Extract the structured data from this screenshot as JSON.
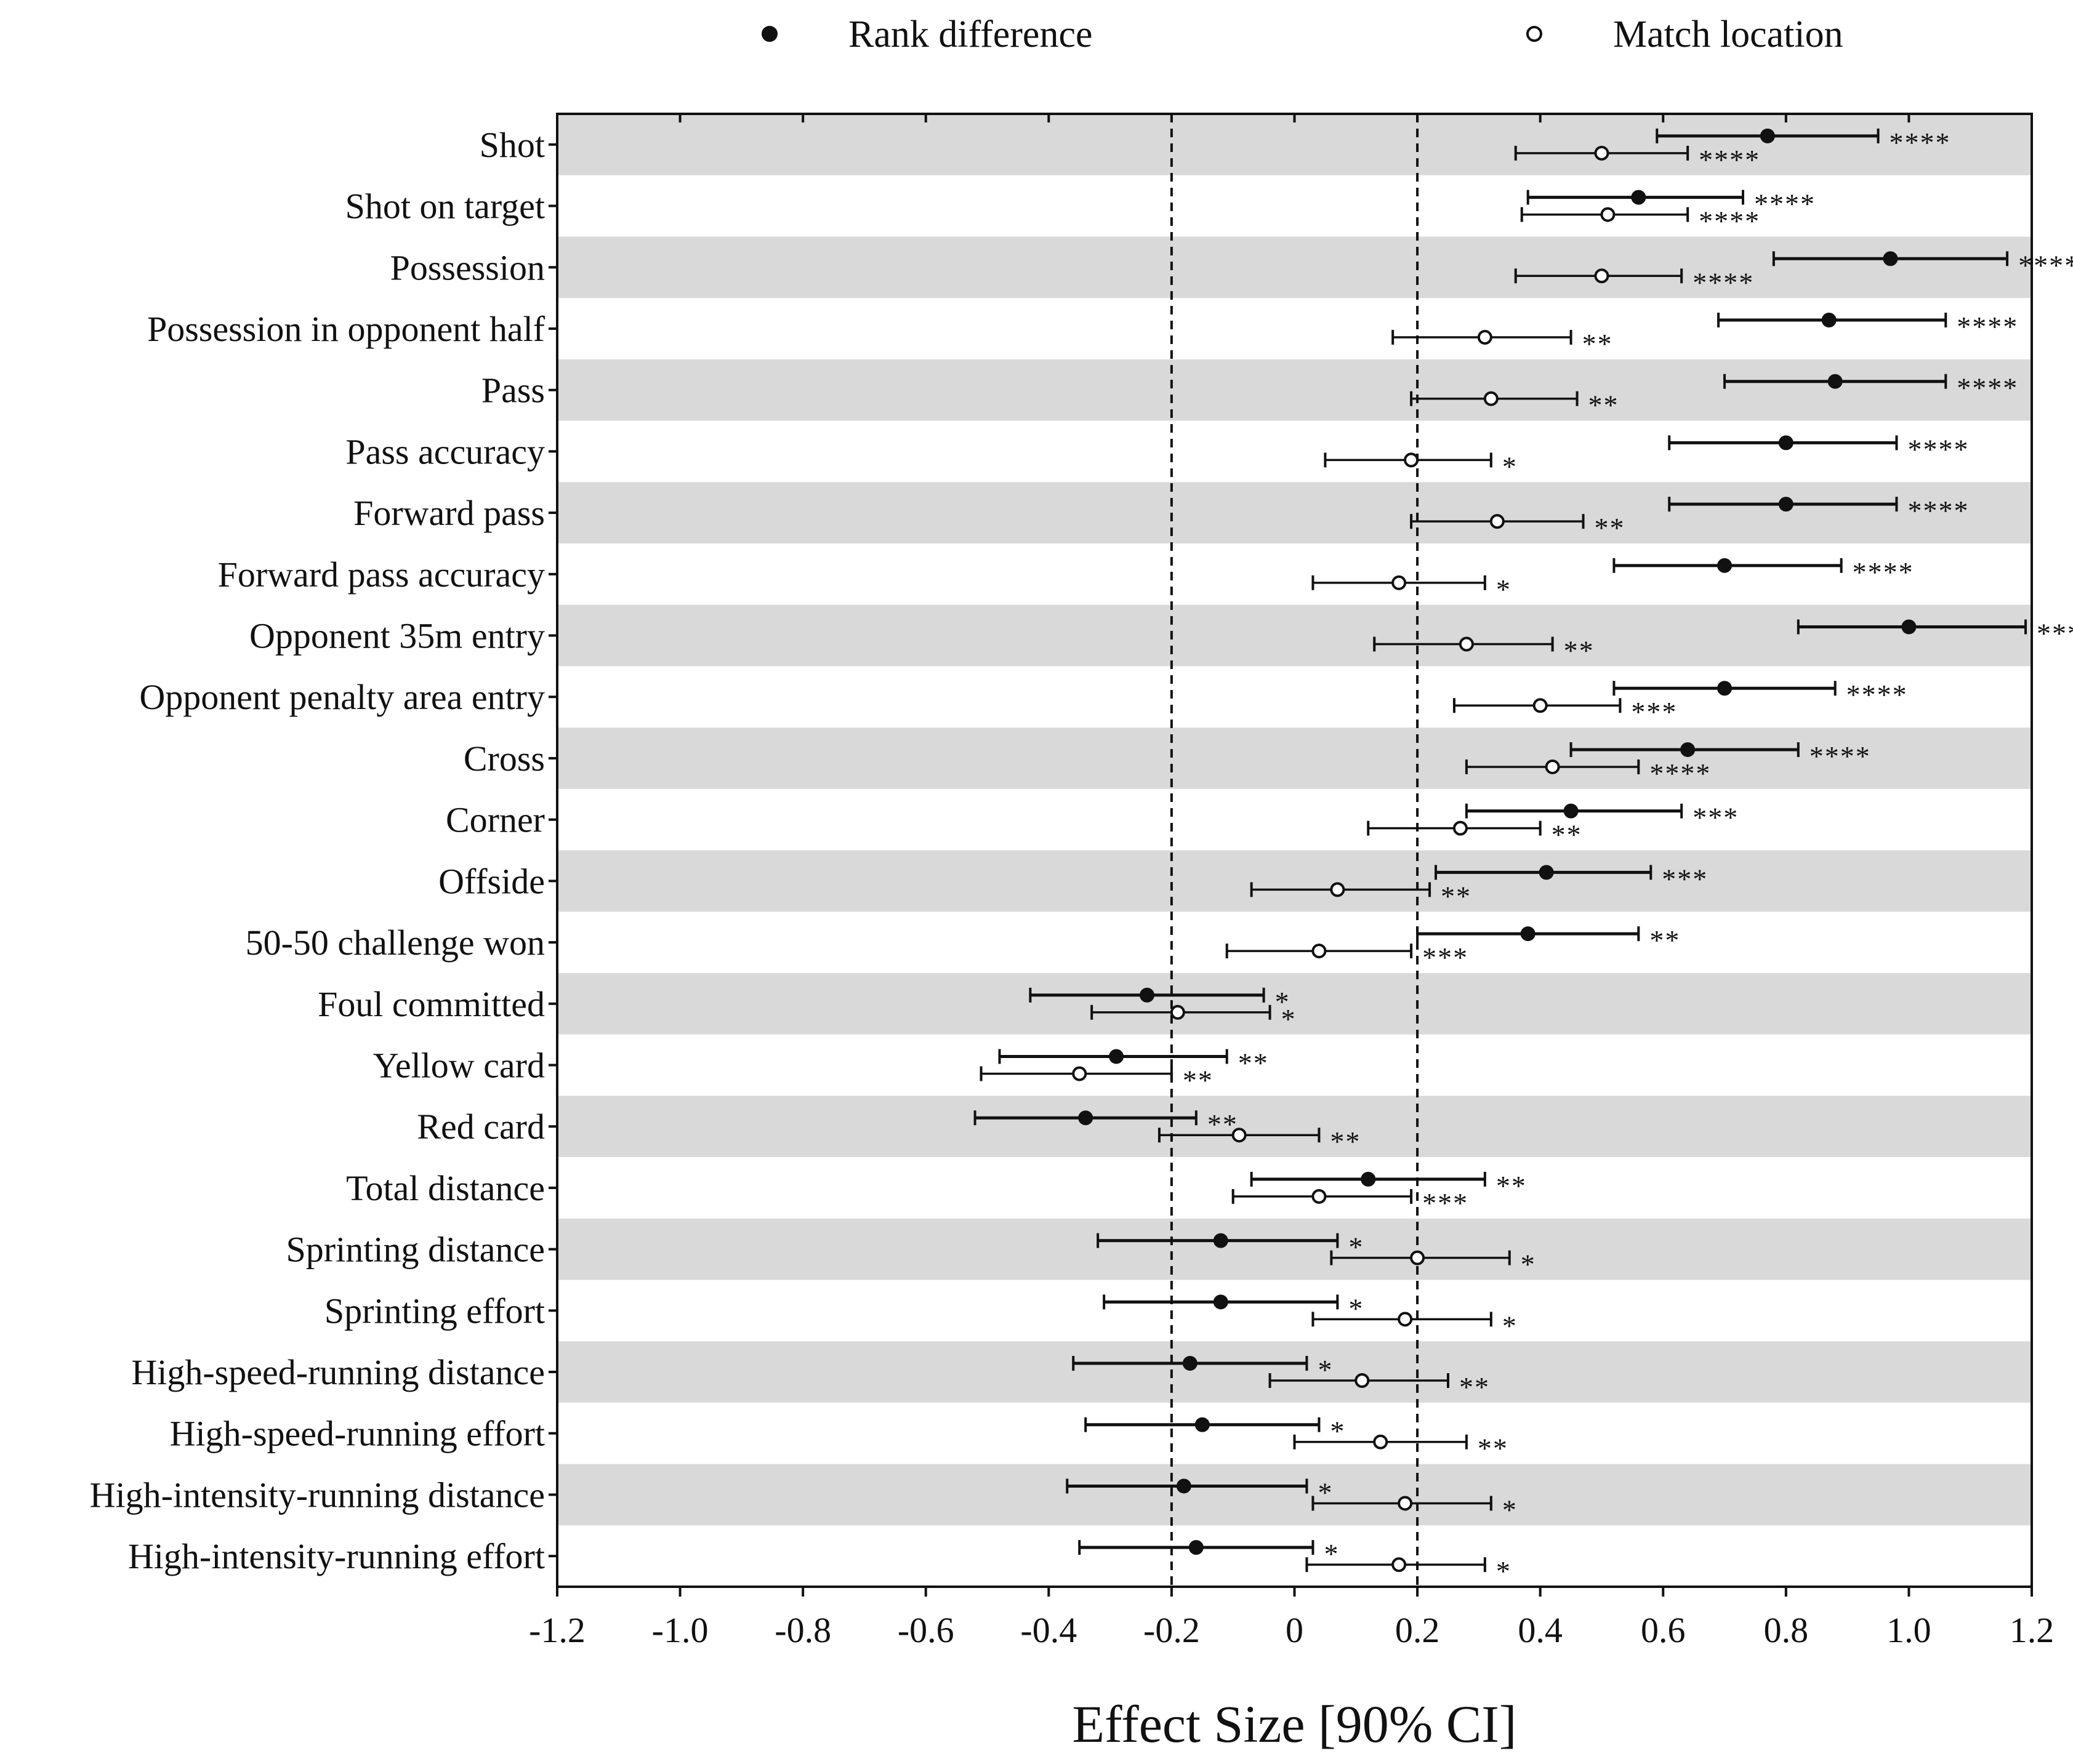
{
  "chart_data": {
    "type": "forest",
    "xlabel": "Effect Size [90% CI]",
    "xlim": [
      -1.2,
      1.2
    ],
    "xticks": [
      "-1.2",
      "-1.0",
      "-0.8",
      "-0.6",
      "-0.4",
      "-0.2",
      "0",
      "0.2",
      "0.4",
      "0.6",
      "0.8",
      "1.0",
      "1.2"
    ],
    "reference_lines": [
      -0.2,
      0.2
    ],
    "legend": {
      "position": "top",
      "entries": [
        {
          "label": "Rank difference",
          "marker": "filled"
        },
        {
          "label": "Match location",
          "marker": "open"
        }
      ]
    },
    "categories": [
      "Shot",
      "Shot on target",
      "Possession",
      "Possession in opponent half",
      "Pass",
      "Pass accuracy",
      "Forward pass",
      "Forward pass accuracy",
      "Opponent 35m entry",
      "Opponent penalty area entry",
      "Cross",
      "Corner",
      "Offside",
      "50-50 challenge won",
      "Foul committed",
      "Yellow card",
      "Red card",
      "Total distance",
      "Sprinting distance",
      "Sprinting effort",
      "High-speed-running distance",
      "High-speed-running effort",
      "High-intensity-running distance",
      "High-intensity-running effort"
    ],
    "series": [
      {
        "name": "Rank difference",
        "marker": "filled",
        "est": [
          0.77,
          0.56,
          0.97,
          0.87,
          0.88,
          0.8,
          0.8,
          0.7,
          1.0,
          0.7,
          0.64,
          0.45,
          0.41,
          0.38,
          -0.24,
          -0.29,
          -0.34,
          0.12,
          -0.12,
          -0.12,
          -0.17,
          -0.15,
          -0.18,
          -0.16
        ],
        "lower": [
          0.59,
          0.38,
          0.78,
          0.69,
          0.7,
          0.61,
          0.61,
          0.52,
          0.82,
          0.52,
          0.45,
          0.28,
          0.23,
          0.2,
          -0.43,
          -0.48,
          -0.52,
          -0.07,
          -0.32,
          -0.31,
          -0.36,
          -0.34,
          -0.37,
          -0.35
        ],
        "upper": [
          0.95,
          0.73,
          1.16,
          1.06,
          1.06,
          0.98,
          0.98,
          0.89,
          1.19,
          0.88,
          0.82,
          0.63,
          0.58,
          0.56,
          -0.05,
          -0.11,
          -0.16,
          0.31,
          0.07,
          0.07,
          0.02,
          0.04,
          0.02,
          0.03
        ],
        "significance": [
          "****",
          "****",
          "****",
          "****",
          "****",
          "****",
          "****",
          "****",
          "****",
          "****",
          "****",
          "***",
          "***",
          "**",
          "*",
          "**",
          "**",
          "**",
          "*",
          "*",
          "*",
          "*",
          "*",
          "*"
        ]
      },
      {
        "name": "Match location",
        "marker": "open",
        "est": [
          0.5,
          0.51,
          0.5,
          0.31,
          0.32,
          0.19,
          0.33,
          0.17,
          0.28,
          0.4,
          0.42,
          0.27,
          0.07,
          0.04,
          -0.19,
          -0.35,
          -0.09,
          0.04,
          0.2,
          0.18,
          0.11,
          0.14,
          0.18,
          0.17
        ],
        "lower": [
          0.36,
          0.37,
          0.36,
          0.16,
          0.19,
          0.05,
          0.19,
          0.03,
          0.13,
          0.26,
          0.28,
          0.12,
          -0.07,
          -0.11,
          -0.33,
          -0.51,
          -0.22,
          -0.1,
          0.06,
          0.03,
          -0.04,
          0.0,
          0.03,
          0.02
        ],
        "upper": [
          0.64,
          0.64,
          0.63,
          0.45,
          0.46,
          0.32,
          0.47,
          0.31,
          0.42,
          0.53,
          0.56,
          0.4,
          0.22,
          0.19,
          -0.04,
          -0.2,
          0.04,
          0.19,
          0.35,
          0.32,
          0.25,
          0.28,
          0.32,
          0.31
        ],
        "significance": [
          "****",
          "****",
          "****",
          "**",
          "**",
          "*",
          "**",
          "*",
          "**",
          "***",
          "****",
          "**",
          "**",
          "***",
          "*",
          "**",
          "**",
          "***",
          "*",
          "*",
          "**",
          "**",
          "*",
          "*"
        ]
      }
    ]
  }
}
